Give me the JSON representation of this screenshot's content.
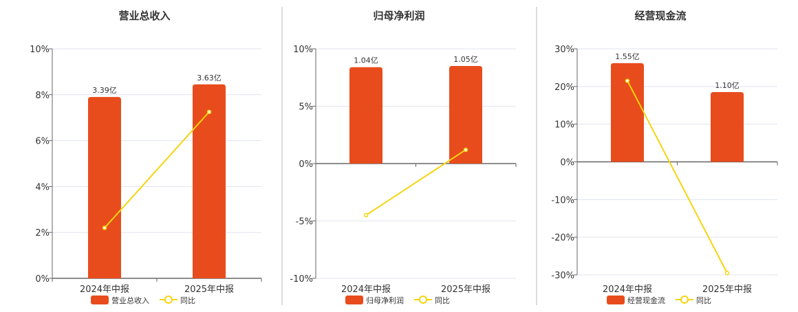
{
  "colors": {
    "bar": "#e84c1c",
    "line": "#f5d40f",
    "grid": "#dfe3ee",
    "axis": "#666666",
    "divider": "#bbbbbb"
  },
  "legend": {
    "bar_icon": "rect",
    "line_icon": "circle-line"
  },
  "chart_data": [
    {
      "type": "bar",
      "title": "营业总收入",
      "categories": [
        "2024年中报",
        "2025年中报"
      ],
      "y_ticks": [
        "0%",
        "2%",
        "4%",
        "6%",
        "8%",
        "10%"
      ],
      "ylim": [
        0,
        10
      ],
      "grid": true,
      "legend_position": "bottom",
      "series": [
        {
          "name": "营业总收入",
          "type": "bar",
          "values": [
            7.9,
            8.45
          ],
          "labels": [
            "3.39亿",
            "3.63亿"
          ]
        },
        {
          "name": "同比",
          "type": "line",
          "values": [
            2.2,
            7.25
          ]
        }
      ]
    },
    {
      "type": "bar",
      "title": "归母净利润",
      "categories": [
        "2024年中报",
        "2025年中报"
      ],
      "y_ticks": [
        "-10%",
        "-5%",
        "0%",
        "5%",
        "10%"
      ],
      "ylim": [
        -10,
        10
      ],
      "grid": true,
      "legend_position": "bottom",
      "series": [
        {
          "name": "归母净利润",
          "type": "bar",
          "values": [
            8.4,
            8.5
          ],
          "labels": [
            "1.04亿",
            "1.05亿"
          ]
        },
        {
          "name": "同比",
          "type": "line",
          "values": [
            -4.5,
            1.2
          ]
        }
      ]
    },
    {
      "type": "bar",
      "title": "经营现金流",
      "categories": [
        "2024年中报",
        "2025年中报"
      ],
      "y_ticks": [
        "-30%",
        "-20%",
        "-10%",
        "0%",
        "10%",
        "20%",
        "30%"
      ],
      "ylim": [
        -30,
        30
      ],
      "grid": true,
      "legend_position": "bottom",
      "series": [
        {
          "name": "经营现金流",
          "type": "bar",
          "values": [
            26.2,
            18.5
          ],
          "labels": [
            "1.55亿",
            "1.10亿"
          ]
        },
        {
          "name": "同比",
          "type": "line",
          "values": [
            21.5,
            -29.5
          ]
        }
      ]
    }
  ]
}
